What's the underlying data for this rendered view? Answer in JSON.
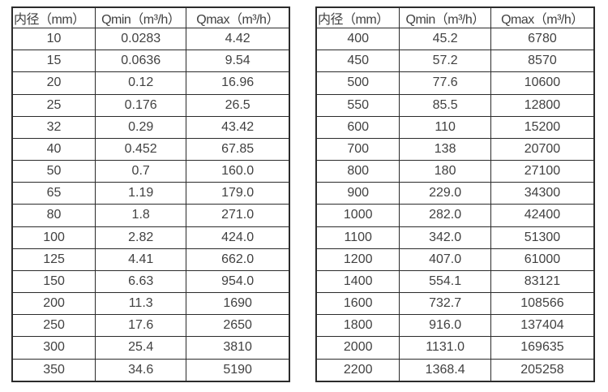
{
  "page": {
    "background": "#ffffff",
    "border_color": "#2b2b2b",
    "text_color": "#414141"
  },
  "tables": {
    "left": {
      "headers": {
        "diameter": "内径（mm）",
        "qmin": "Qmin（m³/h）",
        "qmax": "Qmax（m³/h）"
      },
      "rows": [
        [
          "10",
          "0.0283",
          "4.42"
        ],
        [
          "15",
          "0.0636",
          "9.54"
        ],
        [
          "20",
          "0.12",
          "16.96"
        ],
        [
          "25",
          "0.176",
          "26.5"
        ],
        [
          "32",
          "0.29",
          "43.42"
        ],
        [
          "40",
          "0.452",
          "67.85"
        ],
        [
          "50",
          "0.7",
          "160.0"
        ],
        [
          "65",
          "1.19",
          "179.0"
        ],
        [
          "80",
          "1.8",
          "271.0"
        ],
        [
          "100",
          "2.82",
          "424.0"
        ],
        [
          "125",
          "4.41",
          "662.0"
        ],
        [
          "150",
          "6.63",
          "954.0"
        ],
        [
          "200",
          "11.3",
          "1690"
        ],
        [
          "250",
          "17.6",
          "2650"
        ],
        [
          "300",
          "25.4",
          "3810"
        ],
        [
          "350",
          "34.6",
          "5190"
        ]
      ]
    },
    "right": {
      "headers": {
        "diameter": "内径（mm）",
        "qmin": "Qmin（m³/h）",
        "qmax": "Qmax（m³/h）"
      },
      "rows": [
        [
          "400",
          "45.2",
          "6780"
        ],
        [
          "450",
          "57.2",
          "8570"
        ],
        [
          "500",
          "77.6",
          "10600"
        ],
        [
          "550",
          "85.5",
          "12800"
        ],
        [
          "600",
          "110",
          "15200"
        ],
        [
          "700",
          "138",
          "20700"
        ],
        [
          "800",
          "180",
          "27100"
        ],
        [
          "900",
          "229.0",
          "34300"
        ],
        [
          "1000",
          "282.0",
          "42400"
        ],
        [
          "1100",
          "342.0",
          "51300"
        ],
        [
          "1200",
          "407.0",
          "61000"
        ],
        [
          "1400",
          "554.1",
          "83121"
        ],
        [
          "1600",
          "732.7",
          "108566"
        ],
        [
          "1800",
          "916.0",
          "137404"
        ],
        [
          "2000",
          "1131.0",
          "169635"
        ],
        [
          "2200",
          "1368.4",
          "205258"
        ]
      ]
    }
  }
}
